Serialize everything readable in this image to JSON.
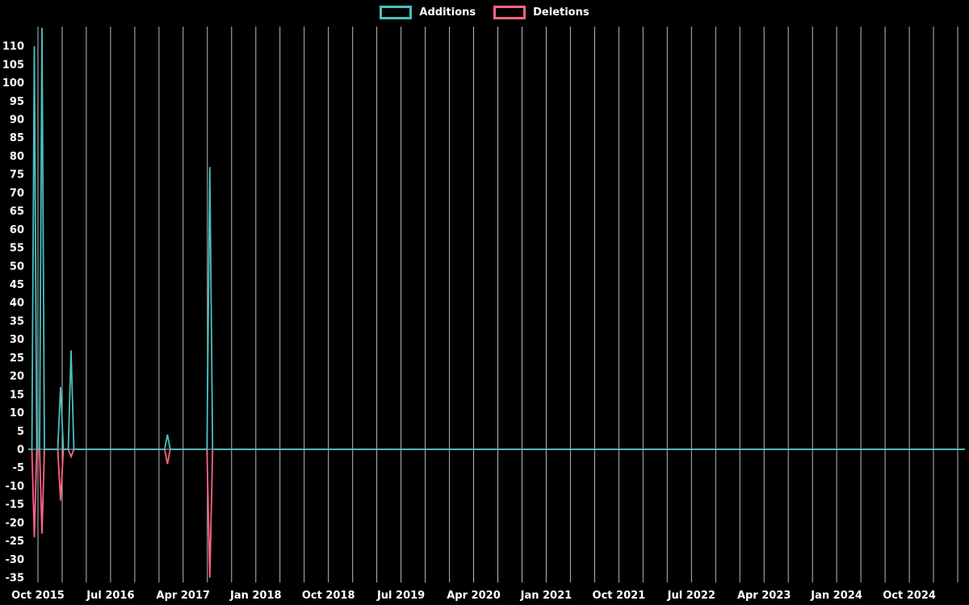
{
  "chart_data": {
    "type": "line",
    "title": "",
    "background": "#000000",
    "legend": [
      {
        "label": "Additions",
        "color": "#4bc0c0"
      },
      {
        "label": "Deletions",
        "color": "#ff6384"
      }
    ],
    "colors": {
      "grid": "#bbbbbb",
      "zero_line": "#9d9d9d",
      "text": "#ffffff"
    },
    "x_axis": {
      "range_months": [
        -1.2,
        114.9
      ],
      "grid_start": 0,
      "grid_step_months": 3,
      "ticks": [
        {
          "month": 0,
          "label": "Oct 2015"
        },
        {
          "month": 9,
          "label": "Jul 2016"
        },
        {
          "month": 18,
          "label": "Apr 2017"
        },
        {
          "month": 27,
          "label": "Jan 2018"
        },
        {
          "month": 36,
          "label": "Oct 2018"
        },
        {
          "month": 45,
          "label": "Jul 2019"
        },
        {
          "month": 54,
          "label": "Apr 2020"
        },
        {
          "month": 63,
          "label": "Jan 2021"
        },
        {
          "month": 72,
          "label": "Oct 2021"
        },
        {
          "month": 81,
          "label": "Jul 2022"
        },
        {
          "month": 90,
          "label": "Apr 2023"
        },
        {
          "month": 99,
          "label": "Jan 2024"
        },
        {
          "month": 108,
          "label": "Oct 2024"
        }
      ]
    },
    "y_axis": {
      "min": -35,
      "max": 110,
      "step": 5,
      "range": [
        -36.3,
        115.3
      ]
    },
    "series": [
      {
        "name": "Additions",
        "color": "#4bc0c0",
        "points": [
          [
            -1.2,
            0
          ],
          [
            -0.75,
            0
          ],
          [
            -0.45,
            110
          ],
          [
            -0.15,
            0
          ],
          [
            0.2,
            0
          ],
          [
            0.5,
            115
          ],
          [
            0.8,
            0
          ],
          [
            2.45,
            0
          ],
          [
            2.8,
            17
          ],
          [
            3.15,
            0
          ],
          [
            3.75,
            0
          ],
          [
            4.1,
            27
          ],
          [
            4.45,
            0
          ],
          [
            15.7,
            0
          ],
          [
            16.05,
            4
          ],
          [
            16.4,
            0
          ],
          [
            20.95,
            0
          ],
          [
            21.3,
            77
          ],
          [
            21.65,
            0
          ],
          [
            114.9,
            0
          ]
        ]
      },
      {
        "name": "Deletions",
        "color": "#ff6384",
        "points": [
          [
            -1.2,
            0
          ],
          [
            -0.75,
            0
          ],
          [
            -0.45,
            -24
          ],
          [
            -0.15,
            0
          ],
          [
            0.2,
            0
          ],
          [
            0.5,
            -23
          ],
          [
            0.8,
            0
          ],
          [
            2.45,
            0
          ],
          [
            2.8,
            -14
          ],
          [
            3.15,
            0
          ],
          [
            3.75,
            0
          ],
          [
            4.1,
            -2
          ],
          [
            4.45,
            0
          ],
          [
            15.7,
            0
          ],
          [
            16.05,
            -4
          ],
          [
            16.4,
            0
          ],
          [
            20.95,
            0
          ],
          [
            21.3,
            -35
          ],
          [
            21.65,
            0
          ],
          [
            114.9,
            0
          ]
        ]
      }
    ]
  }
}
